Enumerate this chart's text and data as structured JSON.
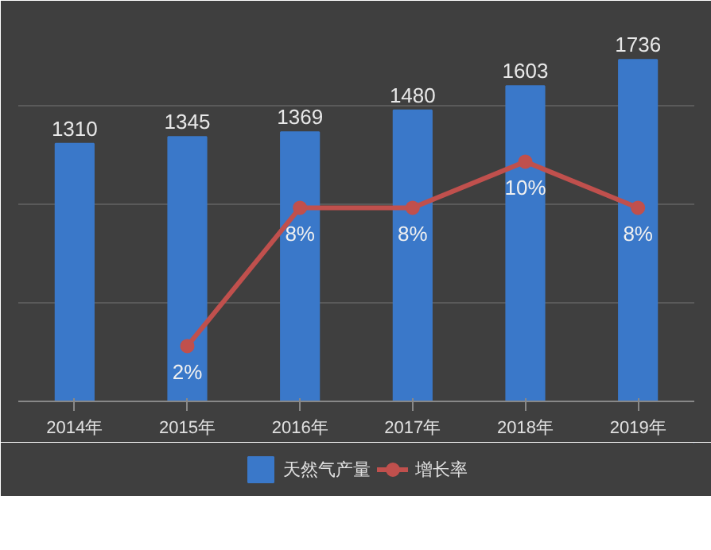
{
  "chart_data": {
    "type": "bar",
    "categories": [
      "2014年",
      "2015年",
      "2016年",
      "2017年",
      "2018年",
      "2019年"
    ],
    "grid": "y",
    "legend": "bottom",
    "tick_labels": "x",
    "series": [
      {
        "name": "天然气产量",
        "color": "#3a78c9",
        "values": [
          1310,
          1345,
          1369,
          1480,
          1603,
          1736
        ],
        "value_labels": [
          "1310",
          "1345",
          "1369",
          "1480",
          "1603",
          "1736"
        ]
      },
      {
        "name": "增长率",
        "type": "line",
        "axis": "y2",
        "color": "#c0504d",
        "marker": "circle",
        "values": [
          null,
          2,
          8,
          8,
          10,
          8
        ],
        "value_labels": [
          null,
          "2%",
          "8%",
          "8%",
          "10%",
          "8%"
        ]
      }
    ]
  }
}
